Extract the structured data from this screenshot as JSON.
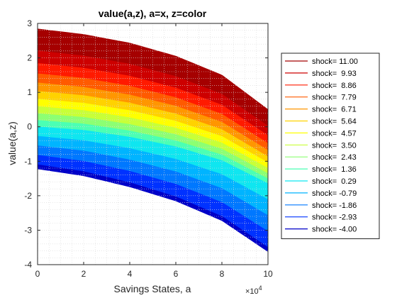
{
  "chart_data": {
    "type": "line",
    "title": "value(a,z), a=x, z=color",
    "xlabel": "Savings States, a",
    "ylabel": "value(a,z)",
    "x_exponent_label": "×10",
    "x_exponent_power": "4",
    "xlim": [
      0,
      100000
    ],
    "ylim": [
      -4,
      3
    ],
    "x_ticks": [
      0,
      20000,
      40000,
      60000,
      80000,
      100000
    ],
    "x_tick_labels": [
      "0",
      "2",
      "4",
      "6",
      "8",
      "10"
    ],
    "y_ticks": [
      -4,
      -3,
      -2,
      -1,
      0,
      1,
      2,
      3
    ],
    "y_tick_labels": [
      "-4",
      "-3",
      "-2",
      "-1",
      "0",
      "1",
      "2",
      "3"
    ],
    "grid": "minor-dotted",
    "legend_position": "right",
    "curve_shape": {
      "x": [
        0,
        20000,
        40000,
        60000,
        80000,
        100000
      ],
      "top_series_y": [
        2.84,
        2.68,
        2.43,
        2.05,
        1.5,
        0.5
      ],
      "bottom_series_y": [
        -1.1,
        -1.3,
        -1.62,
        -2.03,
        -2.6,
        -3.5
      ],
      "series_near_zero_y": [
        0.0,
        -0.1,
        -0.3,
        -0.58,
        -0.98,
        -1.65
      ]
    },
    "series": [
      {
        "name": "shock= 11.00",
        "color": "#a50000"
      },
      {
        "name": "shock=  9.93",
        "color": "#cd0000"
      },
      {
        "name": "shock=  8.86",
        "color": "#ff1a00"
      },
      {
        "name": "shock=  7.79",
        "color": "#ff5a00"
      },
      {
        "name": "shock=  6.71",
        "color": "#ff9600"
      },
      {
        "name": "shock=  5.64",
        "color": "#ffd200"
      },
      {
        "name": "shock=  4.57",
        "color": "#ffff00"
      },
      {
        "name": "shock=  3.50",
        "color": "#c8ff37"
      },
      {
        "name": "shock=  2.43",
        "color": "#8cff73"
      },
      {
        "name": "shock=  1.36",
        "color": "#4bffb4"
      },
      {
        "name": "shock=  0.29",
        "color": "#0fe6f0"
      },
      {
        "name": "shock= -0.79",
        "color": "#00b4ff"
      },
      {
        "name": "shock= -1.86",
        "color": "#0078ff"
      },
      {
        "name": "shock= -2.93",
        "color": "#0032ff"
      },
      {
        "name": "shock= -4.00",
        "color": "#0000c8"
      }
    ],
    "colors": {
      "axis": "#262626",
      "grid": "#d9d9d9",
      "legend_border": "#262626"
    }
  }
}
